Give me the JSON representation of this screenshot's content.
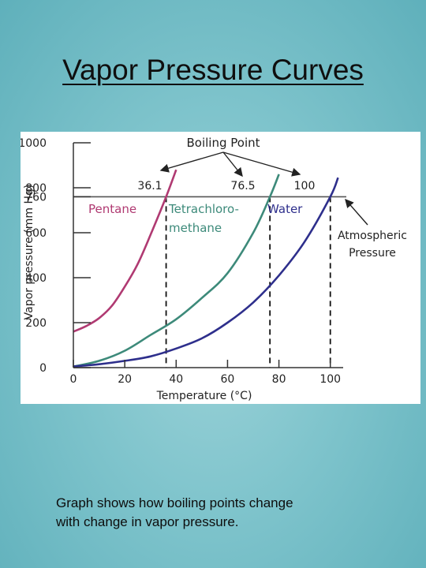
{
  "slide": {
    "title": "Vapor Pressure Curves",
    "caption_lines": [
      "Graph shows how boiling points change",
      "with change in vapor pressure."
    ]
  },
  "colors": {
    "pentane": "#b03a72",
    "tetrachloromethane": "#3d8a7a",
    "water": "#2e2f8c",
    "reference": "#333333"
  },
  "chart_data": {
    "type": "line",
    "xlabel": "Temperature (°C)",
    "ylabel": "Vapor pressure (mm Hg)",
    "xlim": [
      0,
      105
    ],
    "ylim": [
      0,
      1000
    ],
    "x_ticks": [
      0,
      20,
      40,
      60,
      80,
      100
    ],
    "y_ticks": [
      0,
      200,
      400,
      600,
      760,
      800,
      1000
    ],
    "grid": false,
    "series": [
      {
        "name": "Pentane",
        "color_key": "pentane",
        "x": [
          0,
          5,
          10,
          15,
          20,
          25,
          30,
          36.1,
          40
        ],
        "y": [
          160,
          185,
          220,
          275,
          360,
          460,
          590,
          760,
          880
        ]
      },
      {
        "name": "Tetrachloro-methane",
        "color_key": "tetrachloromethane",
        "x": [
          0,
          10,
          20,
          30,
          40,
          50,
          60,
          70,
          76.5,
          80
        ],
        "y": [
          5,
          30,
          75,
          145,
          215,
          310,
          420,
          600,
          760,
          860
        ]
      },
      {
        "name": "Water",
        "color_key": "water",
        "x": [
          0,
          10,
          20,
          30,
          40,
          50,
          60,
          70,
          80,
          90,
          100,
          103
        ],
        "y": [
          5,
          15,
          30,
          50,
          85,
          130,
          200,
          290,
          410,
          560,
          760,
          845
        ]
      }
    ],
    "reference_line": {
      "y": 760,
      "label": "Atmospheric Pressure"
    },
    "boiling_points": {
      "heading": "Boiling Point",
      "points": [
        {
          "x": 36.1,
          "label": "36.1"
        },
        {
          "x": 76.5,
          "label": "76.5"
        },
        {
          "x": 100,
          "label": "100"
        }
      ]
    },
    "annotations": {
      "pentane_label": "Pentane",
      "tetra_label_line1": "Tetrachloro-",
      "tetra_label_line2": "methane",
      "water_label": "Water",
      "atm_line1": "Atmospheric",
      "atm_line2": "Pressure"
    }
  }
}
